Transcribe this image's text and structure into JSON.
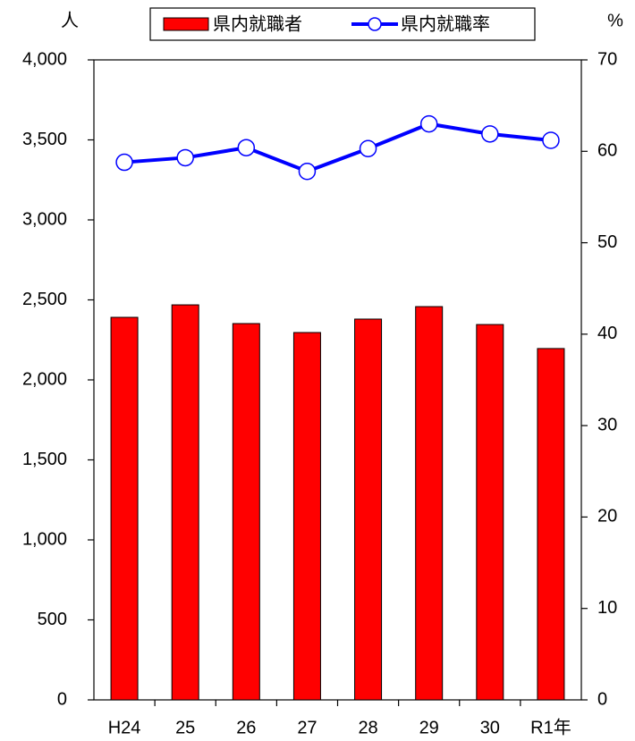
{
  "chart_data": {
    "type": "bar-line",
    "y_unit": "人",
    "y2_unit": "%",
    "categories": [
      "H24",
      "25",
      "26",
      "27",
      "28",
      "29",
      "30",
      "R1年"
    ],
    "series": [
      {
        "name": "県内就職者",
        "type": "bar",
        "color": "#ff0000",
        "values": [
          2391,
          2469,
          2352,
          2296,
          2380,
          2458,
          2346,
          2196
        ]
      },
      {
        "name": "県内就職率",
        "type": "line",
        "axis": "y2",
        "color": "#0000ff",
        "values": [
          58.8,
          59.3,
          60.4,
          57.8,
          60.3,
          63.0,
          61.9,
          61.2
        ]
      }
    ],
    "ylim": [
      0,
      4000
    ],
    "yticks": [
      0,
      500,
      {
        "value": 1000,
        "label": "1,000"
      },
      {
        "value": 1500,
        "label": "1,500"
      },
      {
        "value": 2000,
        "label": "2,000"
      },
      {
        "value": 2500,
        "label": "2,500"
      },
      {
        "value": 3000,
        "label": "3,000"
      },
      {
        "value": 3500,
        "label": "3,500"
      },
      {
        "value": 4000,
        "label": "4,000"
      }
    ],
    "y2lim": [
      0,
      70
    ],
    "y2ticks": [
      0,
      10,
      20,
      30,
      40,
      50,
      60,
      70
    ],
    "legend": "top"
  }
}
